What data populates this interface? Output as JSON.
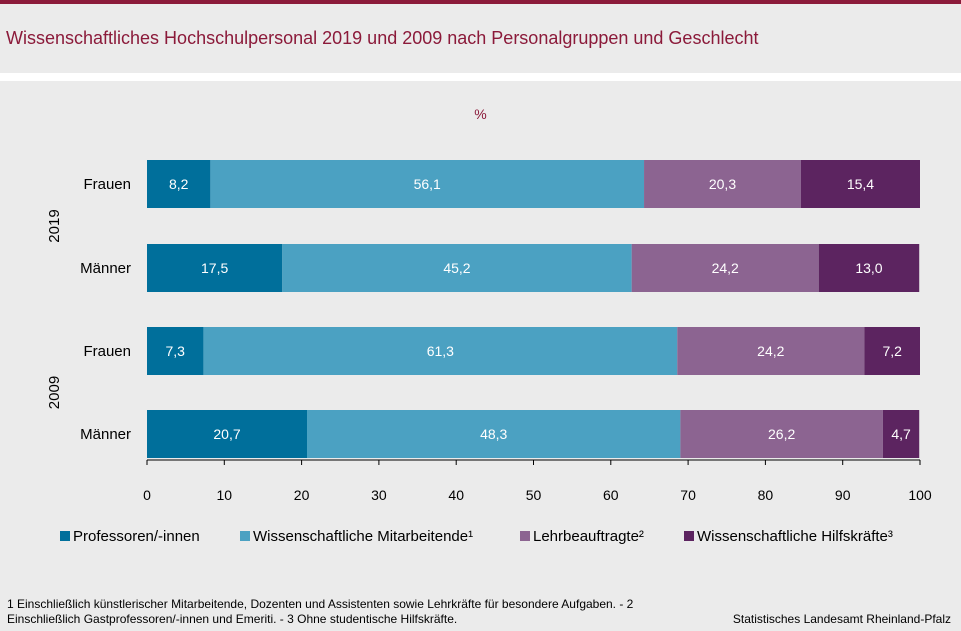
{
  "header": {
    "title": "Wissenschaftliches Hochschulpersonal 2019 und 2009 nach Personalgruppen und Geschlecht"
  },
  "chart_data": {
    "type": "bar",
    "orientation": "horizontal",
    "stacked": true,
    "unit_label": "%",
    "groups": [
      {
        "label": "2019",
        "rows": [
          "Frauen",
          "Männer"
        ]
      },
      {
        "label": "2009",
        "rows": [
          "Frauen",
          "Männer"
        ]
      }
    ],
    "categories": [
      "Frauen",
      "Männer",
      "Frauen",
      "Männer"
    ],
    "series": [
      {
        "name": "Professoren/-innen",
        "color": "#006f9b",
        "values": [
          8.2,
          17.5,
          7.3,
          20.7
        ],
        "labels": [
          "8,2",
          "17,5",
          "7,3",
          "20,7"
        ]
      },
      {
        "name": "Wissenschaftliche Mitarbeitende¹",
        "color": "#4ba1c2",
        "values": [
          56.1,
          45.2,
          61.3,
          48.3
        ],
        "labels": [
          "56,1",
          "45,2",
          "61,3",
          "48,3"
        ]
      },
      {
        "name": "Lehrbeauftragte²",
        "color": "#8c6491",
        "values": [
          20.3,
          24.2,
          24.2,
          26.2
        ],
        "labels": [
          "20,3",
          "24,2",
          "24,2",
          "26,2"
        ]
      },
      {
        "name": "Wissenschaftliche Hilfskräfte³",
        "color": "#5c2460",
        "values": [
          15.4,
          13.0,
          7.2,
          4.7
        ],
        "labels": [
          "15,4",
          "13,0",
          "7,2",
          "4,7"
        ]
      }
    ],
    "xlim": [
      0,
      100
    ],
    "xticks": [
      0,
      10,
      20,
      30,
      40,
      50,
      60,
      70,
      80,
      90,
      100
    ],
    "grid": false,
    "legend_position": "bottom"
  },
  "footer": {
    "footnote": "1 Einschließlich künstlerischer Mitarbeitende, Dozenten und Assistenten sowie Lehrkräfte für besondere Aufgaben. - 2 Einschließlich Gastprofessoren/-innen  und Emeriti. - 3 Ohne studentische Hilfskräfte.",
    "source": "Statistisches Landesamt Rheinland-Pfalz"
  }
}
